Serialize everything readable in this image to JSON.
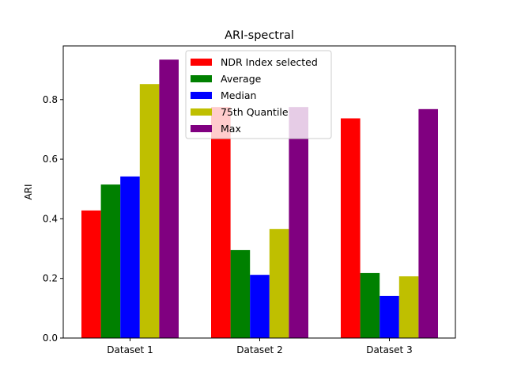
{
  "chart_data": {
    "type": "bar",
    "title": "ARI-spectral",
    "xlabel": "",
    "ylabel": "ARI",
    "categories": [
      "Dataset 1",
      "Dataset 2",
      "Dataset 3"
    ],
    "ylim": [
      0,
      0.98
    ],
    "yticks": [
      0.0,
      0.2,
      0.4,
      0.6,
      0.8
    ],
    "grid": false,
    "legend_position": "upper-center",
    "series": [
      {
        "name": "NDR Index selected",
        "color": "#ff0000",
        "values": [
          0.428,
          0.775,
          0.737
        ]
      },
      {
        "name": "Average",
        "color": "#008000",
        "values": [
          0.515,
          0.295,
          0.218
        ]
      },
      {
        "name": "Median",
        "color": "#0000ff",
        "values": [
          0.542,
          0.212,
          0.141
        ]
      },
      {
        "name": "75th Quantile",
        "color": "#bfbf00",
        "values": [
          0.852,
          0.366,
          0.207
        ]
      },
      {
        "name": "Max",
        "color": "#800080",
        "values": [
          0.934,
          0.775,
          0.768
        ]
      }
    ]
  }
}
